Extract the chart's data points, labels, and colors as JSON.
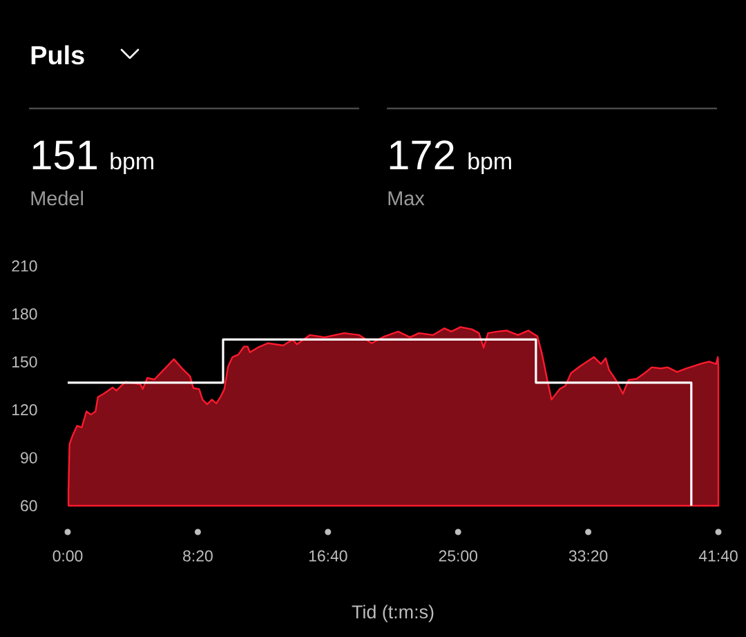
{
  "chart_data": {
    "type": "area",
    "title": "Puls",
    "xlabel": "Tid (t:m:s)",
    "annotations": [
      "151",
      "bpm",
      "Medel",
      "172",
      "bpm",
      "Max"
    ],
    "xlim": [
      0,
      2500
    ],
    "ylim": [
      60,
      210
    ],
    "xticks": [
      {
        "value": 0,
        "label": "0:00"
      },
      {
        "value": 500,
        "label": "8:20"
      },
      {
        "value": 1000,
        "label": "16:40"
      },
      {
        "value": 1500,
        "label": "25:00"
      },
      {
        "value": 2000,
        "label": "33:20"
      },
      {
        "value": 2500,
        "label": "41:40"
      }
    ],
    "yticks": [
      60,
      90,
      120,
      150,
      180,
      210
    ],
    "series": [
      {
        "color": "#ff1a2e",
        "x": [
          3,
          7,
          19,
          36,
          54,
          72,
          89,
          107,
          116,
          138,
          173,
          187,
          222,
          280,
          288,
          306,
          333,
          408,
          439,
          470,
          483,
          505,
          518,
          536,
          554,
          571,
          589,
          602,
          616,
          633,
          655,
          678,
          691,
          700,
          731,
          770,
          828,
          864,
          881,
          930,
          987,
          1062,
          1120,
          1168,
          1217,
          1270,
          1315,
          1350,
          1403,
          1447,
          1474,
          1509,
          1553,
          1580,
          1598,
          1615,
          1651,
          1686,
          1730,
          1770,
          1805,
          1823,
          1841,
          1859,
          1890,
          1912,
          1934,
          1969,
          2022,
          2049,
          2067,
          2080,
          2106,
          2133,
          2155,
          2186,
          2217,
          2244,
          2279,
          2305,
          2341,
          2376,
          2403,
          2429,
          2465,
          2491,
          2498,
          2500
        ],
        "values": [
          69.5,
          98.5,
          104,
          110,
          109,
          119,
          117,
          119,
          128,
          130,
          134,
          132,
          137.5,
          136,
          133,
          140,
          139,
          151.7,
          146,
          141,
          133.6,
          133,
          126.4,
          123.5,
          126.4,
          124,
          128.6,
          133,
          147,
          153,
          154.5,
          159.6,
          159.6,
          156,
          159,
          161.7,
          160.3,
          164,
          161,
          166.8,
          165.4,
          168,
          166.8,
          161.7,
          166,
          169,
          165.4,
          168,
          166.8,
          171,
          169,
          171.8,
          170.4,
          168,
          158.9,
          168,
          169,
          169.6,
          166.8,
          169.6,
          166,
          154.5,
          140,
          126.4,
          133,
          135,
          143,
          147.3,
          153,
          148.7,
          152.3,
          145,
          138.7,
          130,
          138.7,
          139.4,
          143,
          146.6,
          145.9,
          146.6,
          143.7,
          145.9,
          147.3,
          148.7,
          150.2,
          148.7,
          153,
          146.6
        ]
      },
      {
        "type": "step",
        "color": "#ffffff",
        "x": [
          0,
          597,
          1799,
          2396
        ],
        "values": [
          137,
          164,
          137,
          60
        ]
      }
    ]
  }
}
